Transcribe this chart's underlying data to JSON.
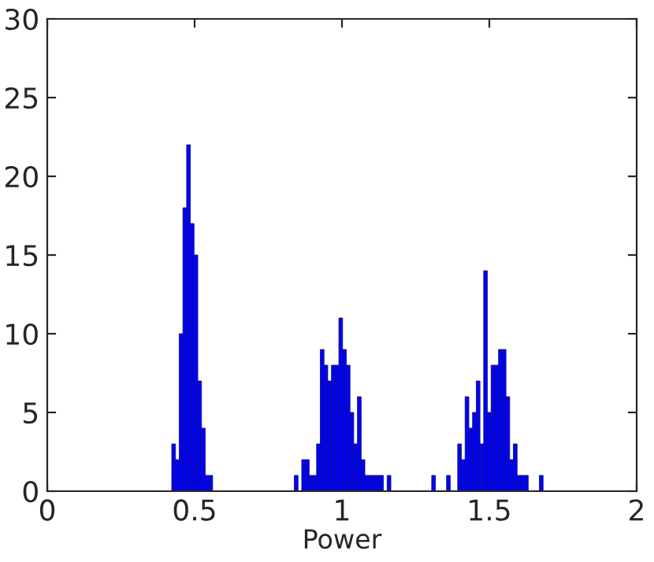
{
  "chart_data": {
    "type": "histogram",
    "xlabel": "Power",
    "bins": [
      0.4225,
      0.4351,
      0.4477,
      0.4603,
      0.4729,
      0.4855,
      0.4981,
      0.5107,
      0.5233,
      0.5359,
      0.5485,
      0.5611,
      0.5737,
      0.5863,
      0.5989,
      0.6115,
      0.6241,
      0.6367,
      0.6493,
      0.6619,
      0.6745,
      0.6871,
      0.6997,
      0.7123,
      0.7249,
      0.7375,
      0.7501,
      0.7627,
      0.7753,
      0.7879,
      0.8005,
      0.8131,
      0.8257,
      0.8383,
      0.8509,
      0.8635,
      0.8761,
      0.8887,
      0.9013,
      0.9139,
      0.9265,
      0.9391,
      0.9517,
      0.9643,
      0.9769,
      0.9895,
      1.0021,
      1.0147,
      1.0273,
      1.0399,
      1.0525,
      1.0651,
      1.0777,
      1.0903,
      1.1029,
      1.1155,
      1.1281,
      1.1407,
      1.1533,
      1.1659,
      1.1785,
      1.1911,
      1.2037,
      1.2163,
      1.2289,
      1.2415,
      1.2541,
      1.2667,
      1.2793,
      1.2919,
      1.3045,
      1.3171,
      1.3297,
      1.3423,
      1.3549,
      1.3675,
      1.3801,
      1.3927,
      1.4053,
      1.4179,
      1.4305,
      1.4431,
      1.4557,
      1.4683,
      1.4809,
      1.4935,
      1.5061,
      1.5187,
      1.5313,
      1.5439,
      1.5565,
      1.5691,
      1.5817,
      1.5943,
      1.6069,
      1.6195,
      1.6321,
      1.6447,
      1.6573,
      1.6699,
      1.6825
    ],
    "values": [
      3,
      2,
      10,
      18,
      22,
      17,
      15,
      7,
      4,
      1,
      1,
      0,
      0,
      0,
      0,
      0,
      0,
      0,
      0,
      0,
      0,
      0,
      0,
      0,
      0,
      0,
      0,
      0,
      0,
      0,
      0,
      0,
      0,
      1,
      0,
      2,
      2,
      1,
      1,
      3,
      9,
      8,
      7,
      8,
      8,
      11,
      9,
      8,
      5,
      3,
      6,
      2,
      1,
      1,
      1,
      1,
      1,
      0,
      1,
      0,
      0,
      0,
      0,
      0,
      0,
      0,
      0,
      0,
      0,
      0,
      1,
      0,
      0,
      0,
      1,
      0,
      0,
      3,
      2,
      6,
      4,
      5,
      7,
      3,
      14,
      5,
      8,
      8,
      9,
      9,
      6,
      2,
      3,
      1,
      1,
      1,
      0,
      0,
      0,
      1
    ],
    "color": "#0000ff",
    "xlim": [
      0,
      2
    ],
    "xticks": [
      0,
      0.5,
      1,
      1.5,
      2
    ],
    "ylim": [
      0,
      30
    ],
    "yticks": [
      0,
      5,
      10,
      15,
      20,
      25,
      30
    ],
    "grid": false
  }
}
